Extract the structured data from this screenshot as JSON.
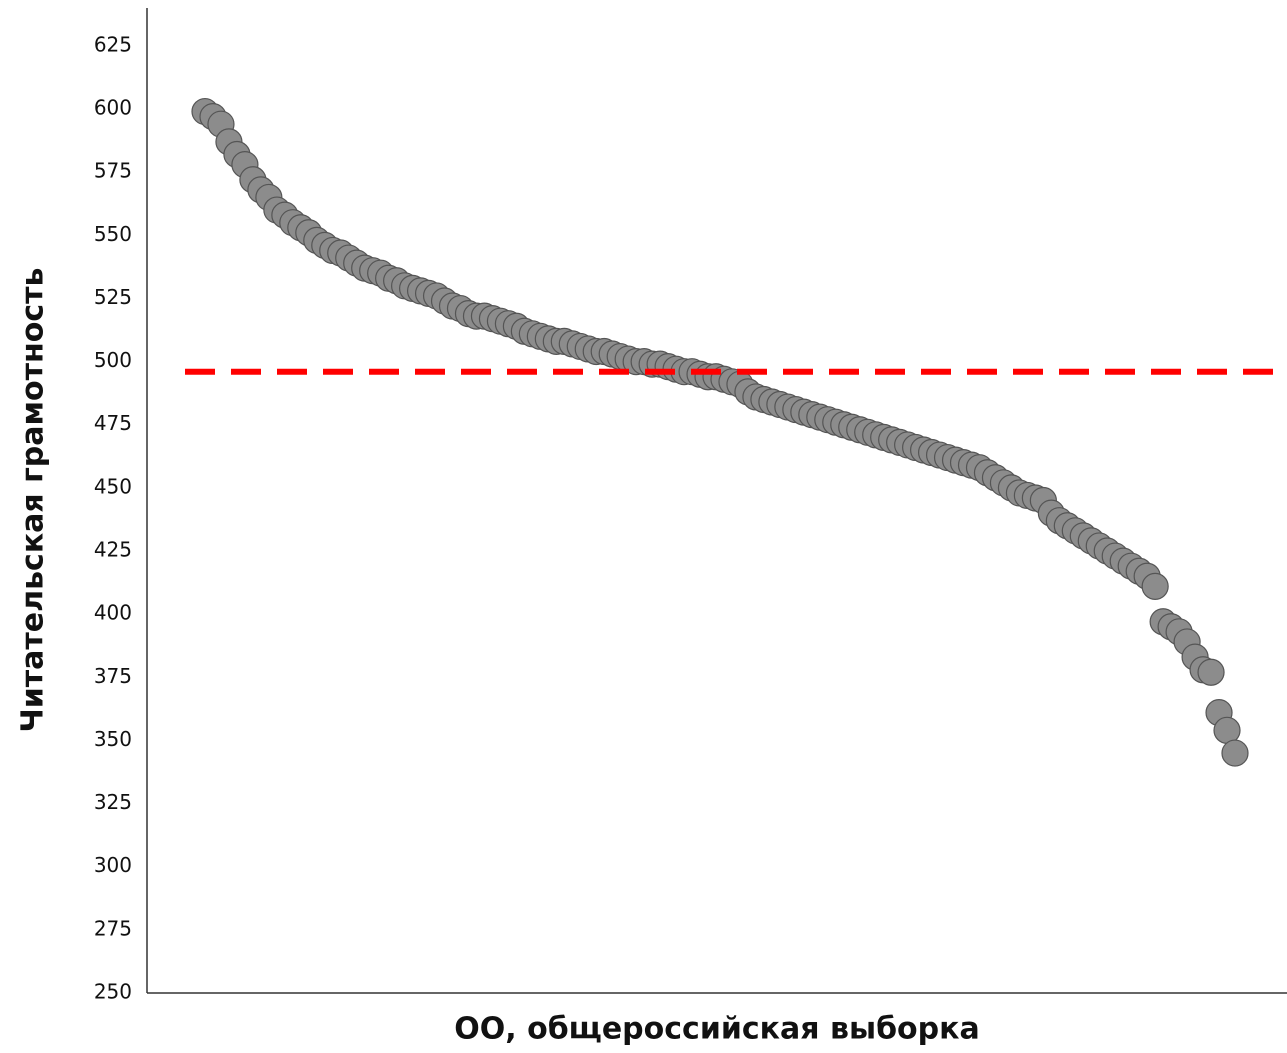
{
  "chart_data": {
    "type": "scatter",
    "y_label": "Читательская грамотность",
    "x_label": "ОО, общероссийская выборка",
    "values": [
      599,
      597,
      594,
      587,
      582,
      578,
      572,
      568,
      565,
      560,
      558,
      555,
      553,
      551,
      548,
      546,
      544,
      543,
      541,
      539,
      537,
      536,
      535,
      533,
      532,
      530,
      529,
      528,
      527,
      526,
      524,
      522,
      521,
      519,
      518,
      518,
      517,
      516,
      515,
      514,
      512,
      511,
      510,
      509,
      508,
      508,
      507,
      506,
      505,
      504,
      504,
      503,
      502,
      501,
      500,
      500,
      499,
      499,
      498,
      497,
      496,
      496,
      495,
      494,
      494,
      493,
      492,
      491,
      488,
      486,
      485,
      484,
      483,
      482,
      481,
      480,
      479,
      478,
      477,
      476,
      475,
      474,
      473,
      472,
      471,
      470,
      469,
      468,
      467,
      466,
      465,
      464,
      463,
      462,
      461,
      460,
      459,
      458,
      456,
      454,
      452,
      450,
      448,
      447,
      446,
      445,
      440,
      437,
      435,
      433,
      431,
      429,
      427,
      425,
      423,
      421,
      419,
      417,
      415,
      411,
      397,
      395,
      393,
      389,
      383,
      378,
      377,
      361,
      354,
      345
    ],
    "color": "#8c8c8c",
    "ylim": [
      250,
      640
    ],
    "yticks": [
      250,
      275,
      300,
      325,
      350,
      375,
      400,
      425,
      450,
      475,
      500,
      525,
      550,
      575,
      600,
      625
    ],
    "reference_line": {
      "value": 496,
      "color": "#ff0000"
    }
  }
}
